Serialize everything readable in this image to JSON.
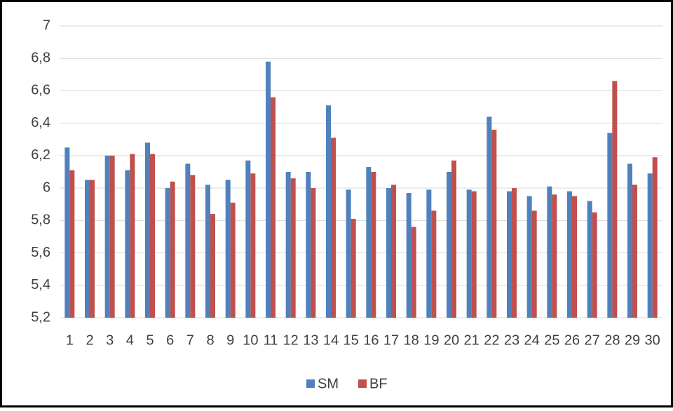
{
  "chart_data": {
    "type": "bar",
    "categories": [
      "1",
      "2",
      "3",
      "4",
      "5",
      "6",
      "7",
      "8",
      "9",
      "10",
      "11",
      "12",
      "13",
      "14",
      "15",
      "16",
      "17",
      "18",
      "19",
      "20",
      "21",
      "22",
      "23",
      "24",
      "25",
      "26",
      "27",
      "28",
      "29",
      "30"
    ],
    "series": [
      {
        "name": "SM",
        "color": "#4f81bd",
        "values": [
          6.25,
          6.05,
          6.2,
          6.11,
          6.28,
          6.0,
          6.15,
          6.02,
          6.05,
          6.17,
          6.78,
          6.1,
          6.1,
          6.51,
          5.99,
          6.13,
          6.0,
          5.97,
          5.99,
          6.1,
          5.99,
          6.44,
          5.98,
          5.95,
          6.01,
          5.98,
          5.92,
          6.34,
          6.15,
          6.09
        ]
      },
      {
        "name": "BF",
        "color": "#c0504d",
        "values": [
          6.11,
          6.05,
          6.2,
          6.21,
          6.21,
          6.04,
          6.08,
          5.84,
          5.91,
          6.09,
          6.56,
          6.06,
          6.0,
          6.31,
          5.81,
          6.1,
          6.02,
          5.76,
          5.86,
          6.17,
          5.98,
          6.36,
          6.0,
          5.86,
          5.96,
          5.95,
          5.85,
          6.66,
          6.02,
          6.19
        ]
      }
    ],
    "ylim": [
      5.2,
      7
    ],
    "yticks": [
      {
        "value": 5.2,
        "label": "5,2"
      },
      {
        "value": 5.4,
        "label": "5,4"
      },
      {
        "value": 5.6,
        "label": "5,6"
      },
      {
        "value": 5.8,
        "label": "5,8"
      },
      6,
      {
        "value": 6.2,
        "label": "6,2"
      },
      {
        "value": 6.4,
        "label": "6,4"
      },
      {
        "value": 6.6,
        "label": "6,6"
      },
      {
        "value": 6.8,
        "label": "6,8"
      },
      7
    ],
    "grid": true,
    "legend": "bottom"
  }
}
